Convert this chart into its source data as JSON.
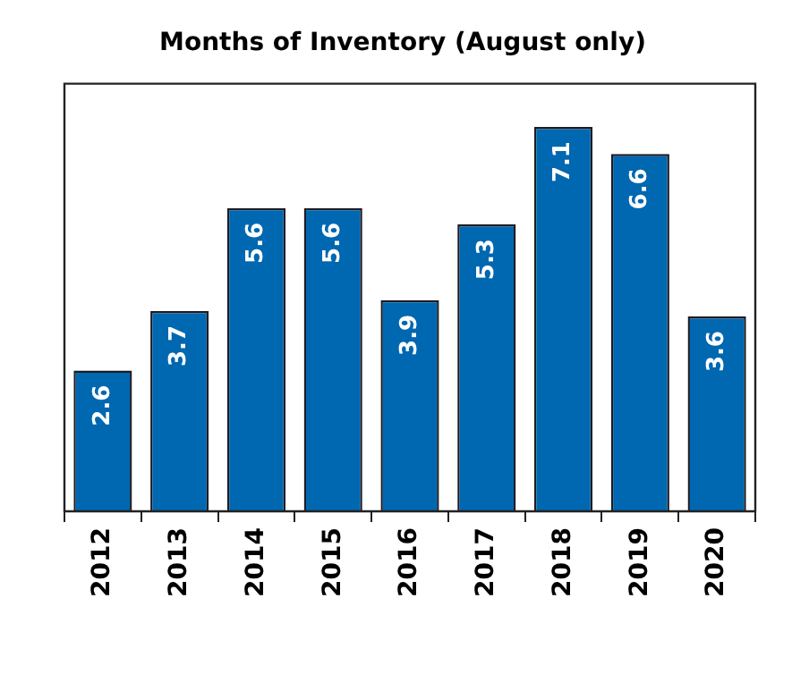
{
  "chart_data": {
    "type": "bar",
    "title": "Months of Inventory (August only)",
    "categories": [
      "2012",
      "2013",
      "2014",
      "2015",
      "2016",
      "2017",
      "2018",
      "2019",
      "2020"
    ],
    "values": [
      2.6,
      3.7,
      5.6,
      5.6,
      3.9,
      5.3,
      7.1,
      6.6,
      3.6
    ],
    "color": "#0067b1",
    "ylim": [
      0,
      7.9
    ],
    "tick_labels": "x",
    "data_labels": true
  }
}
